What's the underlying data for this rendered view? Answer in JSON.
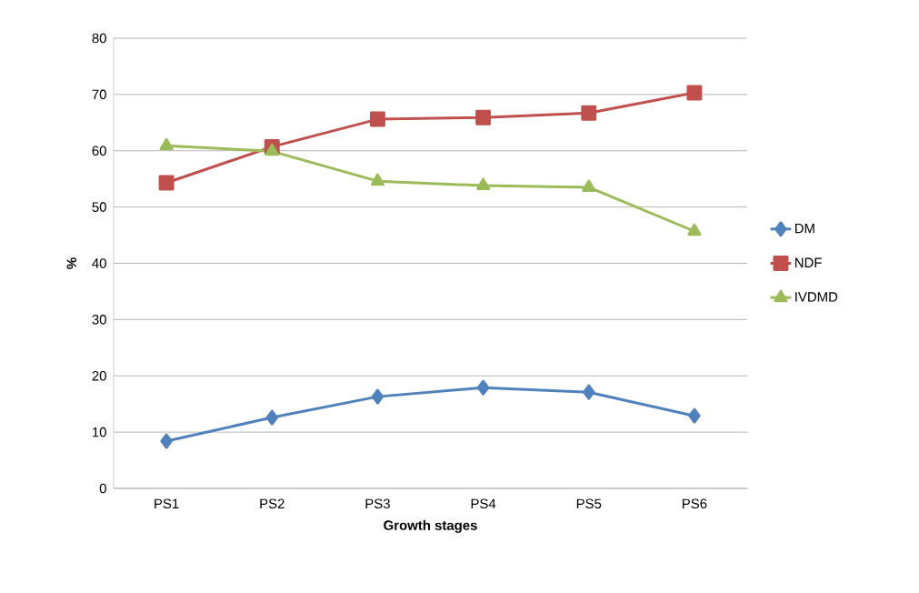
{
  "chart_data": {
    "type": "line",
    "xlabel": "Growth stages",
    "ylabel": "%",
    "categories": [
      "PS1",
      "PS2",
      "PS3",
      "PS4",
      "PS5",
      "PS6"
    ],
    "series": [
      {
        "name": "DM",
        "color": "#4f81bd",
        "marker": "diamond",
        "values": [
          8.4,
          12.6,
          16.3,
          17.9,
          17.1,
          12.9
        ]
      },
      {
        "name": "NDF",
        "color": "#c0504d",
        "marker": "square",
        "values": [
          54.3,
          60.7,
          65.6,
          65.9,
          66.7,
          70.3
        ]
      },
      {
        "name": "IVDMD",
        "color": "#9bbb59",
        "marker": "triangle",
        "values": [
          60.9,
          59.9,
          54.6,
          53.8,
          53.5,
          45.7
        ]
      }
    ],
    "ylim": [
      0,
      80
    ],
    "yticks": [
      0,
      10,
      20,
      30,
      40,
      50,
      60,
      70,
      80
    ],
    "grid": "y",
    "legend": "right",
    "line_style": "solid"
  }
}
